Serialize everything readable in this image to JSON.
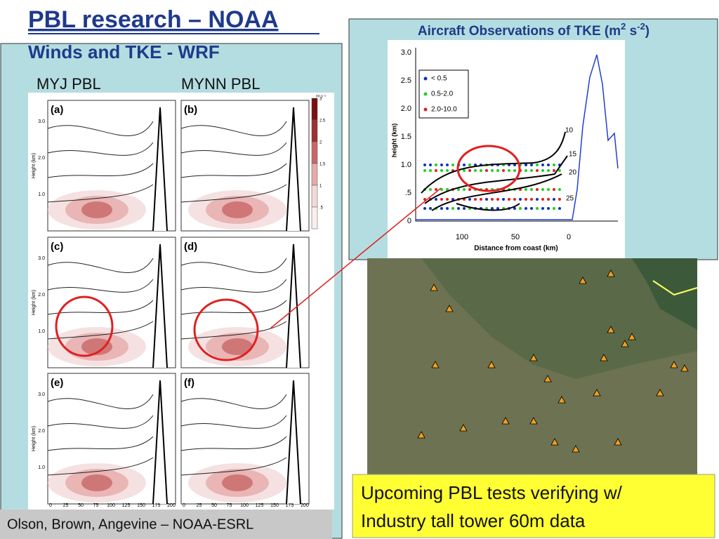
{
  "header": {
    "title": "PBL research – NOAA",
    "subtitle": "Winds and TKE - WRF"
  },
  "wrf": {
    "model_labels": [
      "MYJ PBL",
      "MYNN PBL"
    ],
    "panels": [
      "(a)",
      "(b)",
      "(c)",
      "(d)",
      "(e)",
      "(f)"
    ],
    "x_ticks": [
      "0",
      "25",
      "50",
      "75",
      "100",
      "125",
      "150",
      "175",
      "200"
    ],
    "y_ticks": [
      "1.0",
      "2.0",
      "3.0"
    ],
    "y_label": "Height (km)",
    "colorbar_unit": "m² s⁻²",
    "colorbar_ticks": [
      "3",
      "2.5",
      "2",
      "1.5",
      "1",
      ".5"
    ]
  },
  "inset": {
    "title": {
      "text": "Aircraft Observations of TKE (m",
      "sup1": "2",
      "mid": " s",
      "sup2": "-2",
      "end": ")"
    },
    "y_ticks": [
      "3.0",
      "2.5",
      "2.0",
      "1.5",
      "1.0",
      ".5",
      "0"
    ],
    "x_ticks": [
      "100",
      "50",
      "0"
    ],
    "x_label": "Distance from coast (km)",
    "y_label": "height (km)",
    "legend": [
      "< 0.5",
      "0.5-2.0",
      "2.0-10.0"
    ],
    "contour_labels": [
      "10",
      "15",
      "20",
      "25"
    ]
  },
  "footer": {
    "credit": "Olson, Brown, Angevine – NOAA-ESRL"
  },
  "callout": {
    "lines": [
      "Upcoming PBL tests verifying w/",
      "Industry tall tower 60m data"
    ]
  }
}
